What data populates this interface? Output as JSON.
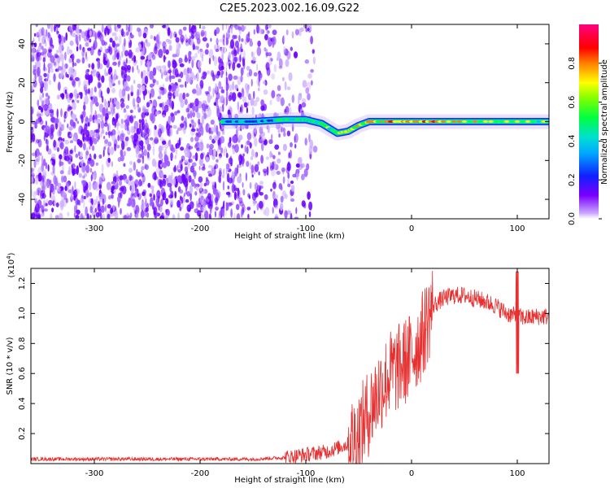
{
  "title": "C2E5.2023.002.16.09.G22",
  "colors": {
    "snr_line": "#e83030",
    "noise_purple": "#6a00ff",
    "axis": "#000000"
  },
  "chart_data": [
    {
      "type": "heatmap",
      "xlabel": "Height of straight line (km)",
      "ylabel": "Frequency (Hz)",
      "xlim": [
        -360,
        130
      ],
      "ylim": [
        -50,
        50
      ],
      "xticks": [
        -300,
        -200,
        -100,
        0,
        100
      ],
      "yticks": [
        -40,
        -20,
        0,
        20,
        40
      ],
      "colorbar": {
        "label": "Normalized spectral amplitude",
        "range": [
          0,
          1
        ],
        "ticks": [
          "0.0",
          "0.2",
          "0.4",
          "0.6",
          "0.8"
        ],
        "colormap": "rainbow (white-purple-blue-cyan-green-yellow-red-magenta)"
      },
      "signal_track": [
        {
          "x": -180,
          "y": 0,
          "amp": 0.45
        },
        {
          "x": -150,
          "y": 0,
          "amp": 0.4
        },
        {
          "x": -120,
          "y": 1,
          "amp": 0.5
        },
        {
          "x": -100,
          "y": 1,
          "amp": 0.55
        },
        {
          "x": -85,
          "y": -1,
          "amp": 0.6
        },
        {
          "x": -70,
          "y": -6,
          "amp": 0.65
        },
        {
          "x": -60,
          "y": -5,
          "amp": 0.7
        },
        {
          "x": -50,
          "y": -2,
          "amp": 0.7
        },
        {
          "x": -40,
          "y": 0,
          "amp": 0.75
        },
        {
          "x": -20,
          "y": 0,
          "amp": 0.8
        },
        {
          "x": 0,
          "y": 0,
          "amp": 0.85
        },
        {
          "x": 30,
          "y": 0,
          "amp": 0.8
        },
        {
          "x": 80,
          "y": 0,
          "amp": 0.7
        },
        {
          "x": 130,
          "y": 0,
          "amp": 0.65
        }
      ],
      "noise_region_xlim": [
        -360,
        -100
      ]
    },
    {
      "type": "line",
      "xlabel": "Height of straight line (km)",
      "ylabel": "SNR (10 * v/v)",
      "yscale_label": "(x10",
      "yscale_exp": "4",
      "yscale_close": ")",
      "xlim": [
        -360,
        130
      ],
      "ylim": [
        0,
        1.3
      ],
      "xticks": [
        -300,
        -200,
        -100,
        0,
        100
      ],
      "yticks": [
        "0.2",
        "0.4",
        "0.6",
        "0.8",
        "1.0",
        "1.2"
      ],
      "series": [
        {
          "x": [
            -360,
            -300,
            -250,
            -200,
            -150,
            -120,
            -100,
            -80,
            -60,
            -50,
            -40,
            -30,
            -20,
            -10,
            0,
            10,
            20,
            30,
            40,
            50,
            60,
            70,
            80,
            90,
            100,
            110,
            120,
            130
          ],
          "y": [
            0.03,
            0.03,
            0.03,
            0.03,
            0.03,
            0.04,
            0.06,
            0.08,
            0.13,
            0.2,
            0.35,
            0.5,
            0.6,
            0.65,
            0.72,
            0.85,
            1.05,
            1.1,
            1.12,
            1.12,
            1.1,
            1.08,
            1.05,
            1.0,
            0.98,
            0.97,
            0.98,
            0.98
          ]
        }
      ]
    }
  ]
}
